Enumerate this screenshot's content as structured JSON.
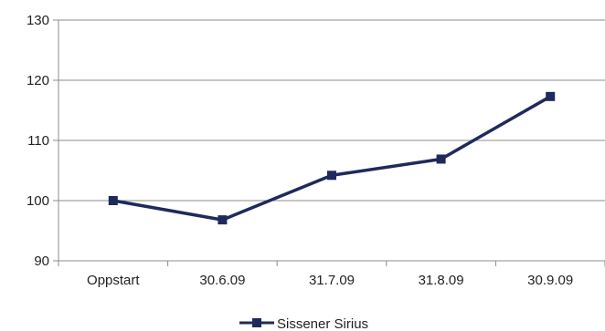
{
  "chart_data": {
    "type": "line",
    "categories": [
      "Oppstart",
      "30.6.09",
      "31.7.09",
      "31.8.09",
      "30.9.09"
    ],
    "series": [
      {
        "name": "Sissener Sirius",
        "values": [
          100,
          96.8,
          104.2,
          106.9,
          117.3
        ],
        "color": "#1f2a5c"
      }
    ],
    "yticks": [
      90,
      100,
      110,
      120,
      130
    ],
    "ylim": [
      90,
      130
    ],
    "grid": true,
    "legend": "bottom-center",
    "title": "",
    "xlabel": "",
    "ylabel": ""
  }
}
